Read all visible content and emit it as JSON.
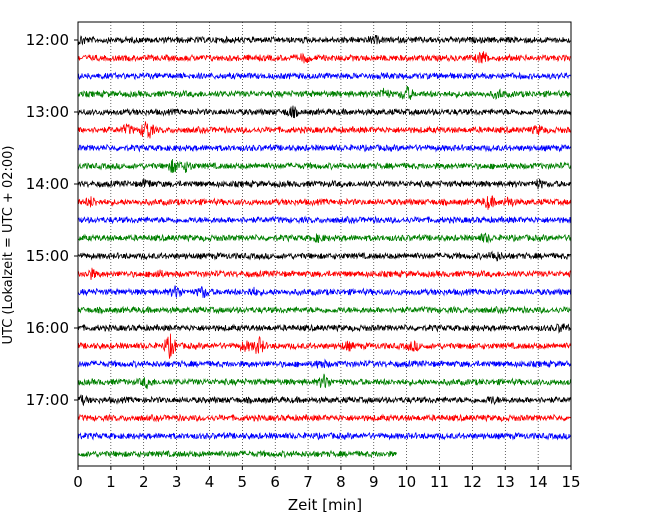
{
  "chart_data": {
    "type": "line",
    "title": "",
    "xlabel": "Zeit  [min]",
    "ylabel": "UTC (Lokalzeit = UTC + 02:00)",
    "xlim": [
      0,
      15
    ],
    "x_ticks": [
      "0",
      "1",
      "2",
      "3",
      "4",
      "5",
      "6",
      "7",
      "8",
      "9",
      "10",
      "11",
      "12",
      "13",
      "14",
      "15"
    ],
    "y_ticks": [
      "12:00",
      "13:00",
      "14:00",
      "15:00",
      "16:00",
      "17:00"
    ],
    "grid": "vertical dotted",
    "colors": [
      "#000000",
      "#ff0000",
      "#0000ff",
      "#008000"
    ],
    "row_interval_min": 15,
    "traces": [
      {
        "start": "12:00",
        "color": "#000000",
        "end_min": 15
      },
      {
        "start": "12:15",
        "color": "#ff0000",
        "end_min": 15
      },
      {
        "start": "12:30",
        "color": "#0000ff",
        "end_min": 15
      },
      {
        "start": "12:45",
        "color": "#008000",
        "end_min": 15
      },
      {
        "start": "13:00",
        "color": "#000000",
        "end_min": 15
      },
      {
        "start": "13:15",
        "color": "#ff0000",
        "end_min": 15
      },
      {
        "start": "13:30",
        "color": "#0000ff",
        "end_min": 15
      },
      {
        "start": "13:45",
        "color": "#008000",
        "end_min": 15
      },
      {
        "start": "14:00",
        "color": "#000000",
        "end_min": 15
      },
      {
        "start": "14:15",
        "color": "#ff0000",
        "end_min": 15
      },
      {
        "start": "14:30",
        "color": "#0000ff",
        "end_min": 15
      },
      {
        "start": "14:45",
        "color": "#008000",
        "end_min": 15
      },
      {
        "start": "15:00",
        "color": "#000000",
        "end_min": 15
      },
      {
        "start": "15:15",
        "color": "#ff0000",
        "end_min": 15
      },
      {
        "start": "15:30",
        "color": "#0000ff",
        "end_min": 15
      },
      {
        "start": "15:45",
        "color": "#008000",
        "end_min": 15
      },
      {
        "start": "16:00",
        "color": "#000000",
        "end_min": 15
      },
      {
        "start": "16:15",
        "color": "#ff0000",
        "end_min": 15
      },
      {
        "start": "16:30",
        "color": "#0000ff",
        "end_min": 15
      },
      {
        "start": "16:45",
        "color": "#008000",
        "end_min": 15
      },
      {
        "start": "17:00",
        "color": "#000000",
        "end_min": 15
      },
      {
        "start": "17:15",
        "color": "#ff0000",
        "end_min": 15
      },
      {
        "start": "17:30",
        "color": "#0000ff",
        "end_min": 15
      },
      {
        "start": "17:45",
        "color": "#008000",
        "end_min": 9.7
      }
    ]
  }
}
